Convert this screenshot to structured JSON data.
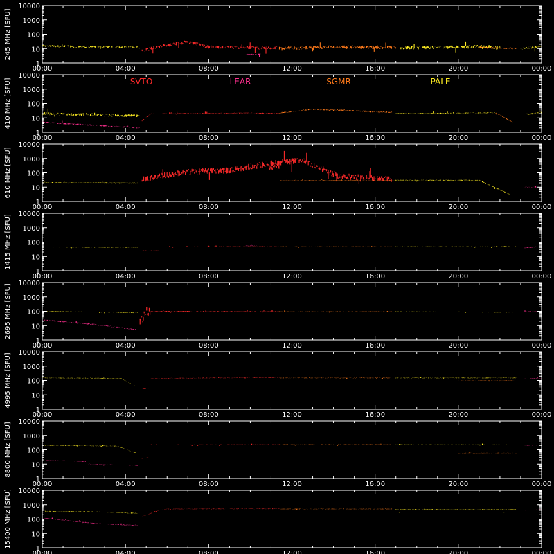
{
  "chart_data": {
    "type": "line",
    "title": "",
    "x_tick_labels": [
      "00:00",
      "04:00",
      "08:00",
      "12:00",
      "16:00",
      "20:00",
      "00:00"
    ],
    "xlim_hours": [
      0,
      24
    ],
    "yscale": "log",
    "ylim": [
      1,
      10000
    ],
    "y_tick_labels": [
      "1",
      "10",
      "100",
      "1000",
      "10000"
    ],
    "y_tick_values": [
      1,
      10,
      100,
      1000,
      10000
    ],
    "grid": false,
    "stations": [
      {
        "name": "SVTO",
        "color": "#ff2a2a"
      },
      {
        "name": "LEAR",
        "color": "#ff2f8f"
      },
      {
        "name": "SGMR",
        "color": "#ff7a1a"
      },
      {
        "name": "PALE",
        "color": "#ffee22"
      }
    ],
    "legend_panel": 1,
    "panels": [
      {
        "ylabel": "245 MHz [SFU]",
        "series": [
          {
            "station": "PALE",
            "points": [
              [
                0,
                15
              ],
              [
                4.7,
                12
              ]
            ],
            "noise": 0.08
          },
          {
            "station": "SVTO",
            "points": [
              [
                4.8,
                7
              ],
              [
                5.2,
                11
              ],
              [
                7.0,
                30
              ],
              [
                8.0,
                13
              ],
              [
                11.3,
                11
              ]
            ],
            "noise": 0.12
          },
          {
            "station": "LEAR",
            "points": [
              [
                9.8,
                4
              ],
              [
                10.5,
                4
              ]
            ],
            "noise": 0.05
          },
          {
            "station": "SGMR",
            "points": [
              [
                11.4,
                10
              ],
              [
                14.0,
                13
              ],
              [
                17.0,
                12
              ]
            ],
            "noise": 0.12
          },
          {
            "station": "PALE",
            "points": [
              [
                17.2,
                11
              ],
              [
                21.5,
                14
              ],
              [
                22.0,
                11
              ]
            ],
            "noise": 0.12
          },
          {
            "station": "SGMR",
            "points": [
              [
                21.0,
                12
              ],
              [
                22.8,
                10
              ]
            ],
            "noise": 0.06
          },
          {
            "station": "PALE",
            "points": [
              [
                23.0,
                10
              ],
              [
                24.0,
                14
              ]
            ],
            "noise": 0.08
          }
        ]
      },
      {
        "ylabel": "410 MHz [SFU]",
        "series": [
          {
            "station": "PALE",
            "points": [
              [
                0,
                20
              ],
              [
                4.7,
                14
              ]
            ],
            "noise": 0.1
          },
          {
            "station": "LEAR",
            "points": [
              [
                0,
                5
              ],
              [
                1.0,
                4
              ],
              [
                4.7,
                2
              ]
            ],
            "noise": 0.05
          },
          {
            "station": "SVTO",
            "points": [
              [
                4.8,
                6
              ],
              [
                5.2,
                19
              ],
              [
                9.8,
                22
              ],
              [
                11.4,
                20
              ]
            ],
            "noise": 0.03
          },
          {
            "station": "SGMR",
            "points": [
              [
                11.4,
                22
              ],
              [
                13.0,
                40
              ],
              [
                16.8,
                24
              ]
            ],
            "noise": 0.05
          },
          {
            "station": "PALE",
            "points": [
              [
                17.0,
                20
              ],
              [
                21.8,
                23
              ]
            ],
            "noise": 0.03
          },
          {
            "station": "SGMR",
            "points": [
              [
                21.8,
                23
              ],
              [
                22.6,
                5
              ]
            ],
            "noise": 0.03
          },
          {
            "station": "PALE",
            "points": [
              [
                23.3,
                18
              ],
              [
                24.0,
                25
              ]
            ],
            "noise": 0.06
          }
        ]
      },
      {
        "ylabel": "610 MHz [SFU]",
        "series": [
          {
            "station": "PALE",
            "points": [
              [
                0,
                22
              ],
              [
                4.7,
                20
              ]
            ],
            "noise": 0.02
          },
          {
            "station": "SVTO",
            "points": [
              [
                4.8,
                35
              ],
              [
                7.0,
                120
              ],
              [
                9.0,
                150
              ],
              [
                10.8,
                400
              ],
              [
                12.5,
                800
              ],
              [
                14.2,
                60
              ],
              [
                16.8,
                35
              ]
            ],
            "noise": 0.22
          },
          {
            "station": "SVTO",
            "points": [
              [
                10.9,
                180
              ],
              [
                11.4,
                300
              ]
            ],
            "noise": 0.2
          },
          {
            "station": "SGMR",
            "points": [
              [
                11.4,
                30
              ],
              [
                17.0,
                30
              ]
            ],
            "noise": 0.02
          },
          {
            "station": "PALE",
            "points": [
              [
                17.0,
                30
              ],
              [
                21.0,
                30
              ],
              [
                22.5,
                3
              ]
            ],
            "noise": 0.03
          },
          {
            "station": "LEAR",
            "points": [
              [
                23.2,
                10
              ],
              [
                24.0,
                10
              ]
            ],
            "noise": 0.02
          }
        ]
      },
      {
        "ylabel": "1415 MHz [SFU]",
        "series": [
          {
            "station": "PALE",
            "points": [
              [
                0,
                45
              ],
              [
                4.6,
                42
              ]
            ],
            "noise": 0.02
          },
          {
            "station": "SVTO",
            "points": [
              [
                4.8,
                25
              ],
              [
                5.6,
                25
              ],
              [
                5.6,
                45
              ],
              [
                9.8,
                50
              ],
              [
                11.4,
                48
              ]
            ],
            "noise": 0.02
          },
          {
            "station": "LEAR",
            "points": [
              [
                9.8,
                55
              ],
              [
                10.3,
                55
              ]
            ],
            "noise": 0.02
          },
          {
            "station": "SGMR",
            "points": [
              [
                11.4,
                48
              ],
              [
                16.8,
                48
              ]
            ],
            "noise": 0.02
          },
          {
            "station": "PALE",
            "points": [
              [
                17.0,
                48
              ],
              [
                22.8,
                48
              ]
            ],
            "noise": 0.02
          },
          {
            "station": "LEAR",
            "points": [
              [
                23.2,
                40
              ],
              [
                24.0,
                50
              ]
            ],
            "noise": 0.03
          }
        ]
      },
      {
        "ylabel": "2695 MHz [SFU]",
        "series": [
          {
            "station": "PALE",
            "points": [
              [
                0,
                100
              ],
              [
                4.6,
                80
              ]
            ],
            "noise": 0.02
          },
          {
            "station": "LEAR",
            "points": [
              [
                0,
                25
              ],
              [
                2.5,
                12
              ],
              [
                4.6,
                5
              ]
            ],
            "noise": 0.04
          },
          {
            "station": "SVTO",
            "points": [
              [
                4.7,
                30
              ],
              [
                5.2,
                100
              ],
              [
                11.4,
                95
              ]
            ],
            "noise": 0.03
          },
          {
            "station": "SVTO",
            "points": [
              [
                4.7,
                20
              ],
              [
                5.2,
                200
              ]
            ],
            "noise": 0.35
          },
          {
            "station": "SGMR",
            "points": [
              [
                11.4,
                95
              ],
              [
                16.8,
                95
              ]
            ],
            "noise": 0.02
          },
          {
            "station": "PALE",
            "points": [
              [
                17.0,
                95
              ],
              [
                22.6,
                85
              ]
            ],
            "noise": 0.02
          },
          {
            "station": "LEAR",
            "points": [
              [
                23.2,
                100
              ],
              [
                24.0,
                100
              ]
            ],
            "noise": 0.02
          }
        ]
      },
      {
        "ylabel": "4995 MHz [SFU]",
        "series": [
          {
            "station": "PALE",
            "points": [
              [
                0,
                150
              ],
              [
                3.8,
                140
              ],
              [
                4.5,
                40
              ]
            ],
            "noise": 0.02
          },
          {
            "station": "SVTO",
            "points": [
              [
                4.8,
                25
              ],
              [
                5.2,
                30
              ],
              [
                5.2,
                140
              ],
              [
                11.4,
                160
              ]
            ],
            "noise": 0.02
          },
          {
            "station": "SGMR",
            "points": [
              [
                11.4,
                150
              ],
              [
                16.8,
                150
              ]
            ],
            "noise": 0.02
          },
          {
            "station": "PALE",
            "points": [
              [
                17.0,
                150
              ],
              [
                22.8,
                150
              ]
            ],
            "noise": 0.02
          },
          {
            "station": "SGMR",
            "points": [
              [
                20.0,
                100
              ],
              [
                22.8,
                100
              ]
            ],
            "noise": 0.01
          },
          {
            "station": "LEAR",
            "points": [
              [
                23.2,
                130
              ],
              [
                24.0,
                140
              ]
            ],
            "noise": 0.02
          }
        ]
      },
      {
        "ylabel": "8800 MHz [SFU]",
        "series": [
          {
            "station": "PALE",
            "points": [
              [
                0,
                200
              ],
              [
                2.2,
                190
              ],
              [
                3.6,
                180
              ],
              [
                4.5,
                60
              ]
            ],
            "noise": 0.02
          },
          {
            "station": "LEAR",
            "points": [
              [
                0,
                20
              ],
              [
                2.2,
                15
              ],
              [
                2.2,
                10
              ],
              [
                4.6,
                8
              ]
            ],
            "noise": 0.02
          },
          {
            "station": "SVTO",
            "points": [
              [
                4.8,
                25
              ],
              [
                5.2,
                30
              ],
              [
                5.2,
                220
              ],
              [
                11.4,
                230
              ]
            ],
            "noise": 0.02
          },
          {
            "station": "SGMR",
            "points": [
              [
                11.4,
                230
              ],
              [
                16.8,
                230
              ]
            ],
            "noise": 0.02
          },
          {
            "station": "PALE",
            "points": [
              [
                17.0,
                230
              ],
              [
                22.8,
                220
              ]
            ],
            "noise": 0.02
          },
          {
            "station": "SGMR",
            "points": [
              [
                20.0,
                60
              ],
              [
                22.8,
                60
              ]
            ],
            "noise": 0.01
          },
          {
            "station": "LEAR",
            "points": [
              [
                23.2,
                200
              ],
              [
                24.0,
                220
              ]
            ],
            "noise": 0.02
          }
        ]
      },
      {
        "ylabel": "15400 MHz [SFU]",
        "series": [
          {
            "station": "PALE",
            "points": [
              [
                0,
                350
              ],
              [
                2.5,
                320
              ],
              [
                4.6,
                250
              ]
            ],
            "noise": 0.03
          },
          {
            "station": "LEAR",
            "points": [
              [
                0,
                120
              ],
              [
                2.5,
                50
              ],
              [
                4.6,
                35
              ]
            ],
            "noise": 0.03
          },
          {
            "station": "SVTO",
            "points": [
              [
                4.8,
                150
              ],
              [
                5.6,
                400
              ],
              [
                6.0,
                500
              ],
              [
                11.4,
                520
              ]
            ],
            "noise": 0.02
          },
          {
            "station": "SGMR",
            "points": [
              [
                11.4,
                500
              ],
              [
                16.8,
                500
              ]
            ],
            "noise": 0.02
          },
          {
            "station": "PALE",
            "points": [
              [
                17.0,
                480
              ],
              [
                22.8,
                470
              ]
            ],
            "noise": 0.02
          },
          {
            "station": "PALE",
            "points": [
              [
                17.0,
                300
              ],
              [
                22.8,
                300
              ]
            ],
            "noise": 0.01
          },
          {
            "station": "LEAR",
            "points": [
              [
                23.2,
                400
              ],
              [
                24.0,
                450
              ]
            ],
            "noise": 0.02
          }
        ]
      }
    ]
  }
}
